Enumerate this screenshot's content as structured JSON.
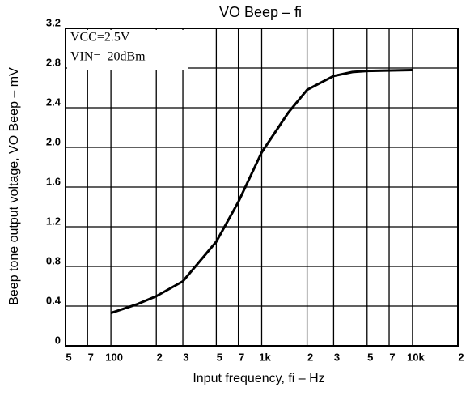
{
  "chart_data": {
    "type": "line",
    "title": "VO Beep – fi",
    "xlabel": "Input frequency, fi – Hz",
    "ylabel": "Beep tone output voltage, VO Beep – mV",
    "annotations": [
      "VCC=2.5V",
      "VIN=–20dBm"
    ],
    "xscale": "log",
    "grid": true,
    "xlim": [
      50,
      20000
    ],
    "ylim": [
      0,
      3.2
    ],
    "xticks": [
      {
        "value": 50,
        "label": "5"
      },
      {
        "value": 70,
        "label": "7"
      },
      100,
      {
        "value": 200,
        "label": "2"
      },
      {
        "value": 300,
        "label": "3"
      },
      {
        "value": 500,
        "label": "5"
      },
      {
        "value": 700,
        "label": "7"
      },
      {
        "value": 1000,
        "label": "1k"
      },
      {
        "value": 2000,
        "label": "2"
      },
      {
        "value": 3000,
        "label": "3"
      },
      {
        "value": 5000,
        "label": "5"
      },
      {
        "value": 7000,
        "label": "7"
      },
      {
        "value": 10000,
        "label": "10k"
      },
      {
        "value": 20000,
        "label": "2"
      }
    ],
    "yticks": [
      0,
      0.4,
      0.8,
      1.2,
      1.6,
      {
        "value": 2,
        "label": "2.0"
      },
      2.4,
      2.8,
      3.2
    ],
    "x": [
      100,
      150,
      200,
      300,
      500,
      700,
      1000,
      1500,
      2000,
      3000,
      4000,
      5000,
      10000
    ],
    "series": [
      {
        "color": "#000000",
        "values": [
          0.33,
          0.42,
          0.5,
          0.65,
          1.05,
          1.45,
          1.95,
          2.35,
          2.58,
          2.72,
          2.76,
          2.77,
          2.78
        ]
      }
    ]
  }
}
